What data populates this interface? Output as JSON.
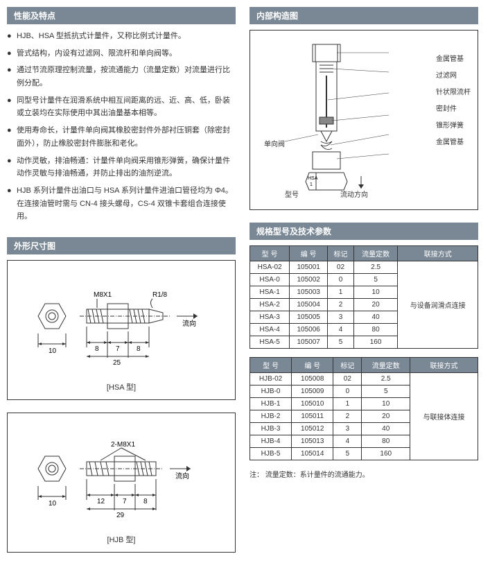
{
  "headers": {
    "features": "性能及特点",
    "internal": "内部构造图",
    "dimensions": "外形尺寸图",
    "specs": "规格型号及技术参数"
  },
  "features": [
    "HJB、HSA 型抵抗式计量件，又称比例式计量件。",
    "管式结构，内设有过滤网、限流杆和单向阀等。",
    "通过节流原理控制流量，按流通能力（流量定数）对流量进行比例分配。",
    "同型号计量件在润滑系统中相互间距离的远、近、高、低，卧装或立装均在实际使用中其出油量基本相等。",
    "使用寿命长，计量件单向阀其橡胶密封件外部衬压铜套（除密封面外），防止橡胶密封件膨胀和老化。",
    "动作灵敏，排油畅通：计量件单向阀采用锥形弹簧，确保计量件动作灵敏与排油畅通，并防止排出的油剂逆流。",
    "HJB 系列计量件出油口与 HSA 系列计量件进油口管径均为 Φ4。在连接油管时需与 CN-4 接头螺母，CS-4 双锥卡套组合连接使用。"
  ],
  "internal_labels": {
    "r1": "金属管基",
    "r2": "过滤网",
    "r3": "针状限流杆",
    "r4": "密封件",
    "r5": "锥形弹簧",
    "r6": "金属管基",
    "left": "单向阀",
    "b1": "型号",
    "b2": "流动方向",
    "hsa_mark": "HSA\n1"
  },
  "hsa_diagram": {
    "caption": "[HSA 型]",
    "thread1": "M8X1",
    "thread2": "R1/8",
    "flow": "流向",
    "d1": "10",
    "d2": "8",
    "d3": "7",
    "d4": "8",
    "d5": "25"
  },
  "hjb_diagram": {
    "caption": "[HJB 型]",
    "thread": "2-M8X1",
    "flow": "流向",
    "d1": "10",
    "d2": "12",
    "d3": "7",
    "d4": "8",
    "d5": "29"
  },
  "spec_headers": {
    "model": "型 号",
    "code": "编 号",
    "mark": "标记",
    "flow": "流量定数",
    "conn": "联接方式"
  },
  "hsa_table": {
    "conn": "与设备润滑点连接",
    "rows": [
      {
        "model": "HSA-02",
        "code": "105001",
        "mark": "02",
        "flow": "2.5"
      },
      {
        "model": "HSA-0",
        "code": "105002",
        "mark": "0",
        "flow": "5"
      },
      {
        "model": "HSA-1",
        "code": "105003",
        "mark": "1",
        "flow": "10"
      },
      {
        "model": "HSA-2",
        "code": "105004",
        "mark": "2",
        "flow": "20"
      },
      {
        "model": "HSA-3",
        "code": "105005",
        "mark": "3",
        "flow": "40"
      },
      {
        "model": "HSA-4",
        "code": "105006",
        "mark": "4",
        "flow": "80"
      },
      {
        "model": "HSA-5",
        "code": "105007",
        "mark": "5",
        "flow": "160"
      }
    ]
  },
  "hjb_table": {
    "conn": "与联接体连接",
    "rows": [
      {
        "model": "HJB-02",
        "code": "105008",
        "mark": "02",
        "flow": "2.5"
      },
      {
        "model": "HJB-0",
        "code": "105009",
        "mark": "0",
        "flow": "5"
      },
      {
        "model": "HJB-1",
        "code": "105010",
        "mark": "1",
        "flow": "10"
      },
      {
        "model": "HJB-2",
        "code": "105011",
        "mark": "2",
        "flow": "20"
      },
      {
        "model": "HJB-3",
        "code": "105012",
        "mark": "3",
        "flow": "40"
      },
      {
        "model": "HJB-4",
        "code": "105013",
        "mark": "4",
        "flow": "80"
      },
      {
        "model": "HJB-5",
        "code": "105014",
        "mark": "5",
        "flow": "160"
      }
    ]
  },
  "note": "注： 流量定数：系计量件的流通能力。"
}
